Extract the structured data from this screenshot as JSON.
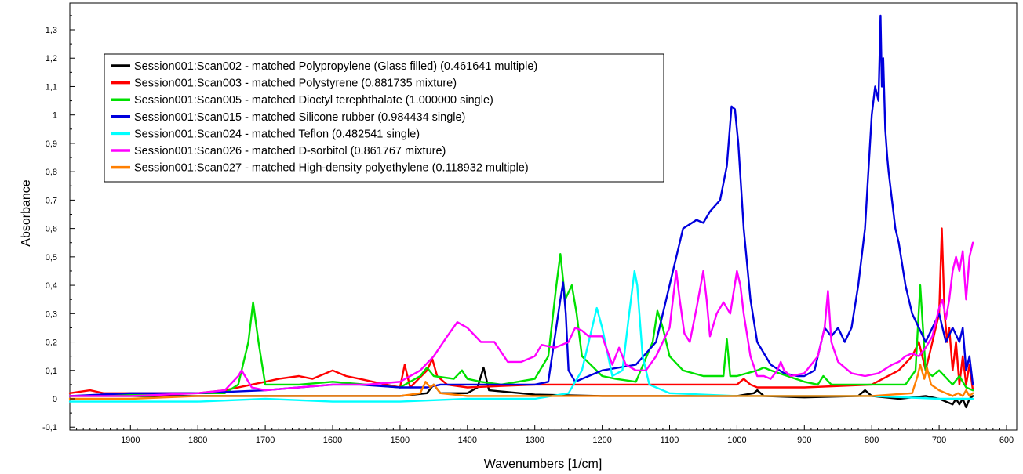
{
  "chart_data": {
    "type": "line",
    "title": "",
    "xlabel": "Wavenumbers [1/cm]",
    "ylabel": "Absorbance",
    "xlim": [
      2000,
      600
    ],
    "ylim": [
      -0.1,
      1.4
    ],
    "x_reversed": true,
    "x_ticks": [
      1900,
      1800,
      1700,
      1600,
      1500,
      1400,
      1300,
      1200,
      1100,
      1000,
      900,
      800,
      700,
      600
    ],
    "y_ticks": [
      -0.1,
      0,
      0.1,
      0.2,
      0.3,
      0.4,
      0.5,
      0.6,
      0.7,
      0.8,
      0.9,
      1,
      1.1,
      1.2,
      1.3
    ],
    "y_tick_labels": [
      "-0,1",
      "0",
      "0,1",
      "0,2",
      "0,3",
      "0,4",
      "0,5",
      "0,6",
      "0,7",
      "0,8",
      "0,9",
      "1",
      "1,1",
      "1,2",
      "1,3"
    ],
    "grid": false,
    "legend_position": "top-left",
    "series": [
      {
        "name": "Session001:Scan002 - matched Polypropylene (Glass filled) (0.461641 multiple)",
        "color": "#000000",
        "x": [
          1990,
          1900,
          1800,
          1700,
          1600,
          1500,
          1460,
          1450,
          1440,
          1400,
          1385,
          1376,
          1368,
          1300,
          1200,
          1100,
          1000,
          975,
          970,
          960,
          900,
          820,
          810,
          800,
          760,
          720,
          700,
          690,
          680,
          675,
          670,
          665,
          660,
          655,
          650
        ],
        "values": [
          0.01,
          0.01,
          0.01,
          0.01,
          0.01,
          0.01,
          0.02,
          0.05,
          0.02,
          0.02,
          0.04,
          0.11,
          0.03,
          0.015,
          0.01,
          0.01,
          0.01,
          0.02,
          0.03,
          0.01,
          0.005,
          0.01,
          0.03,
          0.01,
          0.0,
          0.01,
          0.0,
          -0.01,
          -0.02,
          0.0,
          -0.02,
          0.0,
          -0.03,
          0.0,
          0.01
        ]
      },
      {
        "name": "Session001:Scan003 - matched Polystyrene (0.881735 mixture)",
        "color": "#ff0000",
        "x": [
          1990,
          1960,
          1940,
          1900,
          1800,
          1760,
          1720,
          1700,
          1680,
          1650,
          1630,
          1600,
          1580,
          1560,
          1540,
          1500,
          1493,
          1485,
          1460,
          1452,
          1445,
          1430,
          1400,
          1300,
          1200,
          1100,
          1000,
          990,
          980,
          970,
          900,
          800,
          760,
          740,
          730,
          720,
          710,
          700,
          696,
          692,
          688,
          685,
          680,
          675,
          670,
          665,
          660,
          655,
          650
        ],
        "values": [
          0.02,
          0.03,
          0.02,
          0.02,
          0.02,
          0.03,
          0.05,
          0.06,
          0.07,
          0.08,
          0.07,
          0.1,
          0.08,
          0.07,
          0.06,
          0.04,
          0.12,
          0.04,
          0.1,
          0.14,
          0.08,
          0.05,
          0.04,
          0.05,
          0.05,
          0.05,
          0.05,
          0.07,
          0.05,
          0.04,
          0.04,
          0.05,
          0.1,
          0.15,
          0.2,
          0.1,
          0.2,
          0.3,
          0.6,
          0.3,
          0.2,
          0.25,
          0.1,
          0.2,
          0.05,
          0.15,
          0.05,
          0.12,
          0.03
        ]
      },
      {
        "name": "Session001:Scan005 - matched Dioctyl terephthalate (1.000000 single)",
        "color": "#00e000",
        "x": [
          1990,
          1800,
          1760,
          1740,
          1725,
          1718,
          1710,
          1700,
          1650,
          1600,
          1500,
          1470,
          1460,
          1450,
          1420,
          1408,
          1400,
          1380,
          1350,
          1300,
          1280,
          1268,
          1262,
          1255,
          1245,
          1238,
          1230,
          1200,
          1180,
          1150,
          1125,
          1118,
          1110,
          1100,
          1080,
          1050,
          1020,
          1015,
          1010,
          1000,
          970,
          960,
          950,
          900,
          880,
          872,
          860,
          800,
          750,
          735,
          728,
          720,
          710,
          700,
          680,
          670,
          660,
          650
        ],
        "values": [
          0.01,
          0.02,
          0.02,
          0.05,
          0.2,
          0.34,
          0.2,
          0.05,
          0.05,
          0.06,
          0.04,
          0.08,
          0.11,
          0.08,
          0.07,
          0.1,
          0.07,
          0.06,
          0.05,
          0.07,
          0.15,
          0.4,
          0.51,
          0.35,
          0.4,
          0.3,
          0.15,
          0.08,
          0.07,
          0.06,
          0.2,
          0.31,
          0.25,
          0.15,
          0.1,
          0.08,
          0.08,
          0.21,
          0.08,
          0.08,
          0.1,
          0.11,
          0.1,
          0.06,
          0.05,
          0.08,
          0.05,
          0.05,
          0.05,
          0.1,
          0.4,
          0.1,
          0.08,
          0.1,
          0.05,
          0.08,
          0.04,
          0.03
        ]
      },
      {
        "name": "Session001:Scan015 - matched Silicone rubber (0.984434 single)",
        "color": "#0000dd",
        "x": [
          1990,
          1900,
          1800,
          1700,
          1650,
          1600,
          1560,
          1500,
          1460,
          1440,
          1420,
          1400,
          1380,
          1300,
          1280,
          1262,
          1258,
          1254,
          1250,
          1240,
          1230,
          1200,
          1150,
          1120,
          1100,
          1080,
          1060,
          1050,
          1040,
          1025,
          1015,
          1008,
          1003,
          998,
          990,
          980,
          970,
          950,
          930,
          910,
          900,
          885,
          880,
          870,
          860,
          850,
          840,
          830,
          820,
          810,
          800,
          795,
          790,
          787,
          785,
          783,
          780,
          777,
          775,
          770,
          765,
          760,
          750,
          740,
          730,
          720,
          710,
          700,
          690,
          680,
          670,
          665,
          660,
          655,
          650
        ],
        "values": [
          0.01,
          0.02,
          0.02,
          0.03,
          0.04,
          0.05,
          0.05,
          0.04,
          0.04,
          0.05,
          0.05,
          0.05,
          0.05,
          0.05,
          0.06,
          0.35,
          0.41,
          0.3,
          0.1,
          0.06,
          0.07,
          0.1,
          0.12,
          0.2,
          0.4,
          0.6,
          0.63,
          0.62,
          0.66,
          0.7,
          0.82,
          1.03,
          1.02,
          0.9,
          0.6,
          0.35,
          0.2,
          0.12,
          0.09,
          0.08,
          0.08,
          0.1,
          0.15,
          0.25,
          0.22,
          0.25,
          0.2,
          0.25,
          0.4,
          0.6,
          1.0,
          1.1,
          1.05,
          1.35,
          1.1,
          1.2,
          0.95,
          0.85,
          0.8,
          0.7,
          0.6,
          0.55,
          0.4,
          0.3,
          0.25,
          0.2,
          0.25,
          0.3,
          0.2,
          0.25,
          0.2,
          0.25,
          0.1,
          0.15,
          0.05
        ]
      },
      {
        "name": "Session001:Scan024 - matched Teflon (0.482541 single)",
        "color": "#00ffff",
        "x": [
          1990,
          1900,
          1800,
          1700,
          1600,
          1500,
          1400,
          1300,
          1250,
          1230,
          1215,
          1208,
          1200,
          1185,
          1170,
          1160,
          1152,
          1148,
          1140,
          1130,
          1100,
          1000,
          900,
          800,
          700,
          650
        ],
        "values": [
          -0.01,
          -0.01,
          -0.01,
          0.0,
          -0.01,
          -0.01,
          0.0,
          0.0,
          0.02,
          0.1,
          0.25,
          0.32,
          0.25,
          0.08,
          0.1,
          0.3,
          0.45,
          0.4,
          0.15,
          0.05,
          0.02,
          0.01,
          0.01,
          0.01,
          0.0,
          0.0
        ]
      },
      {
        "name": "Session001:Scan026 - matched D-sorbitol (0.861767 mixture)",
        "color": "#ff00ff",
        "x": [
          1990,
          1900,
          1800,
          1760,
          1740,
          1735,
          1730,
          1720,
          1700,
          1600,
          1550,
          1500,
          1470,
          1450,
          1430,
          1415,
          1400,
          1380,
          1360,
          1340,
          1320,
          1300,
          1290,
          1270,
          1250,
          1240,
          1230,
          1220,
          1200,
          1185,
          1175,
          1165,
          1150,
          1135,
          1120,
          1100,
          1090,
          1085,
          1078,
          1070,
          1060,
          1050,
          1045,
          1040,
          1030,
          1020,
          1010,
          1000,
          995,
          990,
          980,
          970,
          960,
          950,
          940,
          935,
          930,
          920,
          900,
          880,
          870,
          865,
          860,
          850,
          830,
          810,
          790,
          770,
          760,
          750,
          740,
          730,
          720,
          710,
          700,
          695,
          690,
          685,
          680,
          675,
          670,
          665,
          660,
          655,
          650
        ],
        "values": [
          0.01,
          0.01,
          0.02,
          0.03,
          0.08,
          0.1,
          0.08,
          0.04,
          0.03,
          0.05,
          0.05,
          0.06,
          0.1,
          0.15,
          0.22,
          0.27,
          0.25,
          0.2,
          0.2,
          0.13,
          0.13,
          0.15,
          0.19,
          0.18,
          0.2,
          0.25,
          0.24,
          0.22,
          0.22,
          0.12,
          0.18,
          0.12,
          0.1,
          0.1,
          0.15,
          0.25,
          0.45,
          0.35,
          0.23,
          0.2,
          0.32,
          0.45,
          0.35,
          0.22,
          0.3,
          0.34,
          0.3,
          0.45,
          0.4,
          0.3,
          0.15,
          0.08,
          0.08,
          0.07,
          0.1,
          0.13,
          0.1,
          0.08,
          0.09,
          0.15,
          0.25,
          0.38,
          0.2,
          0.13,
          0.09,
          0.08,
          0.09,
          0.12,
          0.13,
          0.15,
          0.16,
          0.15,
          0.18,
          0.22,
          0.32,
          0.35,
          0.28,
          0.35,
          0.45,
          0.5,
          0.45,
          0.52,
          0.35,
          0.5,
          0.55
        ]
      },
      {
        "name": "Session001:Scan027 - matched High-density polyethylene (0.118932 multiple)",
        "color": "#ff7f00",
        "x": [
          1990,
          1900,
          1800,
          1700,
          1600,
          1500,
          1470,
          1462,
          1455,
          1450,
          1440,
          1400,
          1300,
          1200,
          1100,
          1000,
          900,
          800,
          740,
          732,
          728,
          722,
          718,
          712,
          700,
          690,
          680,
          672,
          665,
          660,
          655,
          650
        ],
        "values": [
          0.0,
          0.0,
          0.01,
          0.01,
          0.01,
          0.01,
          0.02,
          0.06,
          0.04,
          0.05,
          0.02,
          0.01,
          0.01,
          0.01,
          0.01,
          0.01,
          0.01,
          0.01,
          0.02,
          0.08,
          0.12,
          0.07,
          0.11,
          0.05,
          0.03,
          0.02,
          0.01,
          0.02,
          0.01,
          0.03,
          0.01,
          0.02
        ]
      }
    ]
  }
}
